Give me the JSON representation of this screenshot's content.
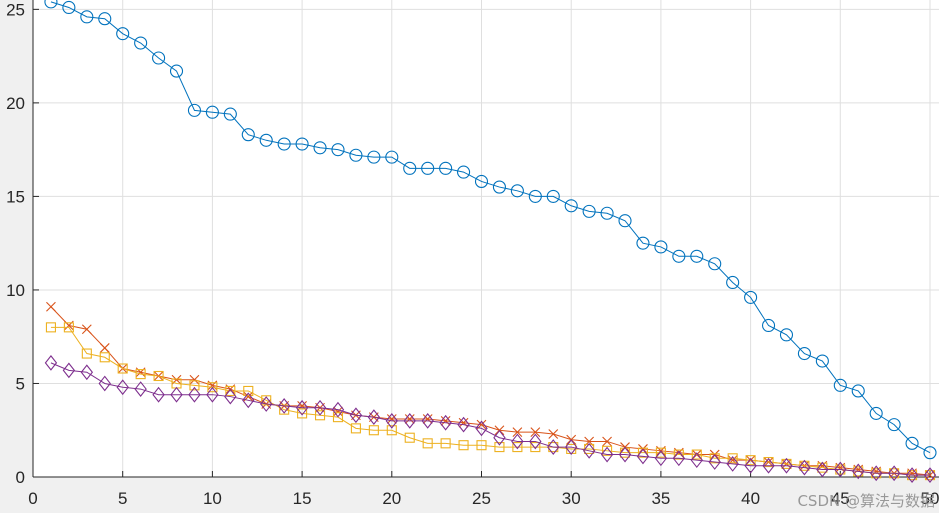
{
  "watermark": "CSDN @算法与数据",
  "chart_data": {
    "type": "line",
    "xlim": [
      0,
      50
    ],
    "ylim": [
      0,
      25.5
    ],
    "xticks": [
      0,
      5,
      10,
      15,
      20,
      25,
      30,
      35,
      40,
      45,
      50
    ],
    "yticks": [
      0,
      5,
      10,
      15,
      20,
      25
    ],
    "grid": true,
    "x": [
      1,
      2,
      3,
      4,
      5,
      6,
      7,
      8,
      9,
      10,
      11,
      12,
      13,
      14,
      15,
      16,
      17,
      18,
      19,
      20,
      21,
      22,
      23,
      24,
      25,
      26,
      27,
      28,
      29,
      30,
      31,
      32,
      33,
      34,
      35,
      36,
      37,
      38,
      39,
      40,
      41,
      42,
      43,
      44,
      45,
      46,
      47,
      48,
      49,
      50
    ],
    "series": [
      {
        "color": "#0072bd",
        "marker": "circle",
        "values": [
          25.4,
          25.1,
          24.6,
          24.5,
          23.7,
          23.2,
          22.4,
          21.7,
          19.6,
          19.5,
          19.4,
          18.3,
          18.0,
          17.8,
          17.8,
          17.6,
          17.5,
          17.2,
          17.1,
          17.1,
          16.5,
          16.5,
          16.5,
          16.3,
          15.8,
          15.5,
          15.3,
          15.0,
          15.0,
          14.5,
          14.2,
          14.1,
          13.7,
          12.5,
          12.3,
          11.8,
          11.8,
          11.4,
          10.4,
          9.6,
          8.1,
          7.6,
          6.6,
          6.2,
          4.9,
          4.6,
          3.4,
          2.8,
          1.8,
          1.3
        ]
      },
      {
        "color": "#d95319",
        "marker": "x",
        "values": [
          9.1,
          8.1,
          7.9,
          6.9,
          5.8,
          5.6,
          5.4,
          5.2,
          5.2,
          4.9,
          4.7,
          4.3,
          3.9,
          3.8,
          3.8,
          3.7,
          3.5,
          3.3,
          3.2,
          3.1,
          3.1,
          3.1,
          3.0,
          2.9,
          2.8,
          2.5,
          2.4,
          2.4,
          2.3,
          2.0,
          1.9,
          1.9,
          1.6,
          1.5,
          1.4,
          1.3,
          1.2,
          1.2,
          0.9,
          0.9,
          0.8,
          0.7,
          0.6,
          0.6,
          0.5,
          0.4,
          0.3,
          0.2,
          0.2,
          0.1
        ]
      },
      {
        "color": "#edb120",
        "marker": "square",
        "values": [
          8.0,
          8.0,
          6.6,
          6.4,
          5.8,
          5.5,
          5.4,
          5.0,
          4.9,
          4.8,
          4.6,
          4.6,
          4.1,
          3.6,
          3.4,
          3.3,
          3.2,
          2.6,
          2.5,
          2.5,
          2.1,
          1.8,
          1.8,
          1.7,
          1.7,
          1.6,
          1.6,
          1.6,
          1.6,
          1.5,
          1.5,
          1.4,
          1.3,
          1.3,
          1.3,
          1.2,
          1.2,
          1.0,
          1.0,
          0.9,
          0.8,
          0.7,
          0.6,
          0.5,
          0.4,
          0.3,
          0.2,
          0.2,
          0.1,
          0.1
        ]
      },
      {
        "color": "#7e2f8e",
        "marker": "diamond",
        "values": [
          6.1,
          5.7,
          5.6,
          5.0,
          4.8,
          4.7,
          4.4,
          4.4,
          4.4,
          4.4,
          4.3,
          4.1,
          3.9,
          3.8,
          3.7,
          3.7,
          3.6,
          3.3,
          3.2,
          3.0,
          3.0,
          3.0,
          2.9,
          2.8,
          2.6,
          2.1,
          1.9,
          1.9,
          1.6,
          1.6,
          1.4,
          1.2,
          1.2,
          1.1,
          1.0,
          1.0,
          0.9,
          0.8,
          0.7,
          0.6,
          0.6,
          0.6,
          0.5,
          0.4,
          0.4,
          0.3,
          0.2,
          0.2,
          0.1,
          0.1
        ]
      }
    ]
  }
}
